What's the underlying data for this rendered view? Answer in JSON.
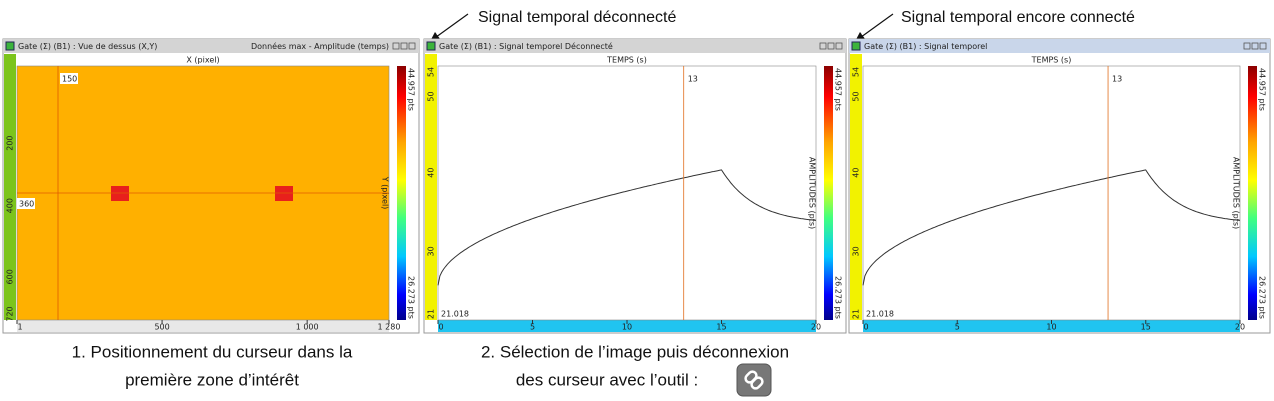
{
  "annotations": [
    "Signal temporal déconnecté",
    "Signal temporal encore connecté"
  ],
  "panels": [
    {
      "title": "Gate (Σ) (B1) : Vue de dessus (X,Y)",
      "title_right": "Données max - Amplitude (temps)",
      "x_axis_label": "X (pixel)",
      "y_axis_label": "Y (pixel)",
      "x_ticks": [
        "1",
        "500",
        "1 000",
        "1 280"
      ],
      "y_ticks": [
        "200",
        "400",
        "600",
        "720"
      ],
      "cursor_x_label": "150",
      "cursor_y_label": "360",
      "colorbar_labels": [
        "44.957 pts",
        "26.273 pts"
      ],
      "caption": [
        "1. Positionnement du curseur dans la",
        "première zone d’intérêt"
      ]
    },
    {
      "title": "Gate (Σ) (B1) : Signal temporel Déconnecté",
      "x_axis_label": "TEMPS (s)",
      "y_axis_label": "AMPLITUDES (pts)",
      "x_ticks": [
        "0",
        "5",
        "10",
        "15",
        "20"
      ],
      "y_ticks": [
        "54",
        "50",
        "40",
        "30",
        "21"
      ],
      "cursor_x_label": "13",
      "cursor_y_label": "21.018",
      "colorbar_labels": [
        "44.957 pts",
        "26.273 pts"
      ],
      "caption": [
        "2. Sélection de l’image puis déconnexion",
        "des curseur avec l’outil :"
      ]
    },
    {
      "title": "Gate (Σ) (B1) : Signal temporel",
      "x_axis_label": "TEMPS (s)",
      "y_axis_label": "AMPLITUDES (pts)",
      "x_ticks": [
        "0",
        "5",
        "10",
        "15",
        "20"
      ],
      "y_ticks": [
        "54",
        "50",
        "40",
        "30",
        "21"
      ],
      "cursor_x_label": "13",
      "cursor_y_label": "21.018",
      "colorbar_labels": [
        "44.957 pts",
        "26.273 pts"
      ]
    }
  ]
}
